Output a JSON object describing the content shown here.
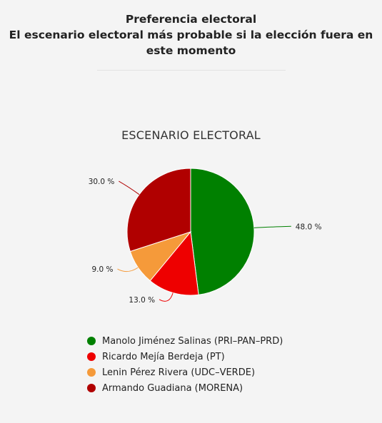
{
  "header": {
    "title_lines": [
      "Preferencia electoral",
      "El escenario electoral más probable si la elección fuera en",
      "este momento"
    ]
  },
  "chart_data": {
    "type": "pie",
    "title": "ESCENARIO ELECTORAL",
    "slices": [
      {
        "name": "Manolo Jiménez Salinas (PRI–PAN–PRD)",
        "value": 48.0,
        "label": "48.0 %",
        "color": "#008000"
      },
      {
        "name": "Ricardo Mejía Berdeja (PT)",
        "value": 13.0,
        "label": "13.0 %",
        "color": "#ee0000"
      },
      {
        "name": "Lenin Pérez Rivera (UDC–VERDE)",
        "value": 9.0,
        "label": "9.0 %",
        "color": "#f59a3a"
      },
      {
        "name": "Armando Guadiana (MORENA)",
        "value": 30.0,
        "label": "30.0 %",
        "color": "#b00000"
      }
    ],
    "legend_placement": "bottom"
  }
}
